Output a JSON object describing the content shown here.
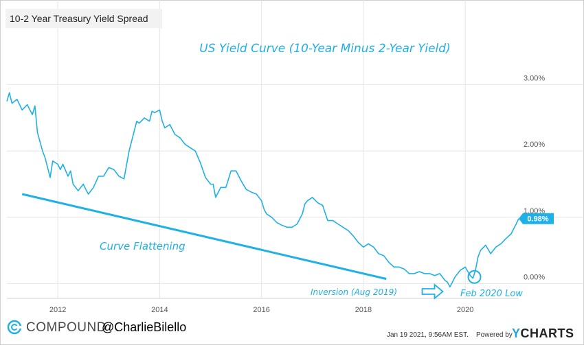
{
  "chart_data": {
    "type": "line",
    "legend_label": "10-2 Year Treasury Yield Spread",
    "title": "US Yield Curve (10-Year Minus 2-Year Yield)",
    "x_ticks": [
      "2012",
      "2014",
      "2016",
      "2018",
      "2020"
    ],
    "y_ticks": [
      "3.00%",
      "2.00%",
      "1.00%",
      "0.00%"
    ],
    "y_tick_values": [
      3.0,
      2.0,
      1.0,
      0.0
    ],
    "ylim": [
      -0.12,
      3.12
    ],
    "xlim": [
      2011.0,
      2021.05
    ],
    "grid": true,
    "series": [
      {
        "color": "#1fb0e6",
        "x": [
          2011.0,
          2011.05,
          2011.1,
          2011.2,
          2011.3,
          2011.4,
          2011.5,
          2011.55,
          2011.6,
          2011.7,
          2011.75,
          2011.8,
          2011.85,
          2011.9,
          2012.0,
          2012.05,
          2012.1,
          2012.2,
          2012.25,
          2012.3,
          2012.4,
          2012.5,
          2012.55,
          2012.6,
          2012.7,
          2012.8,
          2012.9,
          2013.0,
          2013.1,
          2013.2,
          2013.3,
          2013.4,
          2013.5,
          2013.55,
          2013.6,
          2013.7,
          2013.8,
          2013.85,
          2013.9,
          2014.0,
          2014.05,
          2014.1,
          2014.2,
          2014.3,
          2014.4,
          2014.5,
          2014.6,
          2014.7,
          2014.8,
          2014.9,
          2015.0,
          2015.05,
          2015.1,
          2015.2,
          2015.3,
          2015.4,
          2015.5,
          2015.6,
          2015.7,
          2015.8,
          2015.9,
          2016.0,
          2016.05,
          2016.1,
          2016.2,
          2016.3,
          2016.4,
          2016.5,
          2016.6,
          2016.7,
          2016.8,
          2016.85,
          2016.9,
          2017.0,
          2017.1,
          2017.2,
          2017.3,
          2017.4,
          2017.5,
          2017.6,
          2017.7,
          2017.8,
          2017.9,
          2018.0,
          2018.1,
          2018.2,
          2018.3,
          2018.4,
          2018.5,
          2018.6,
          2018.7,
          2018.8,
          2018.9,
          2019.0,
          2019.1,
          2019.2,
          2019.3,
          2019.4,
          2019.5,
          2019.55,
          2019.6,
          2019.65,
          2019.7,
          2019.8,
          2019.9,
          2020.0,
          2020.05,
          2020.1,
          2020.15,
          2020.2,
          2020.25,
          2020.3,
          2020.4,
          2020.5,
          2020.6,
          2020.7,
          2020.8,
          2020.9,
          2021.0,
          2021.05
        ],
        "values": [
          2.75,
          2.88,
          2.72,
          2.78,
          2.62,
          2.7,
          2.55,
          2.68,
          2.28,
          2.0,
          1.9,
          1.75,
          1.6,
          1.85,
          1.8,
          1.72,
          1.8,
          1.62,
          1.7,
          1.5,
          1.4,
          1.5,
          1.42,
          1.35,
          1.45,
          1.62,
          1.62,
          1.75,
          1.72,
          1.62,
          1.58,
          2.0,
          2.3,
          2.45,
          2.42,
          2.5,
          2.45,
          2.6,
          2.58,
          2.62,
          2.45,
          2.35,
          2.4,
          2.25,
          2.2,
          2.1,
          2.05,
          2.0,
          1.82,
          1.6,
          1.5,
          1.5,
          1.3,
          1.45,
          1.45,
          1.7,
          1.7,
          1.55,
          1.42,
          1.38,
          1.35,
          1.25,
          1.12,
          1.05,
          1.0,
          0.92,
          0.88,
          0.85,
          0.85,
          0.9,
          1.05,
          1.2,
          1.25,
          1.3,
          1.22,
          1.18,
          0.95,
          0.95,
          0.9,
          0.85,
          0.8,
          0.72,
          0.62,
          0.55,
          0.6,
          0.55,
          0.45,
          0.42,
          0.32,
          0.25,
          0.25,
          0.22,
          0.15,
          0.15,
          0.18,
          0.15,
          0.15,
          0.12,
          0.15,
          0.1,
          0.05,
          0.02,
          -0.05,
          0.1,
          0.2,
          0.25,
          0.18,
          0.12,
          0.08,
          0.2,
          0.4,
          0.5,
          0.58,
          0.45,
          0.55,
          0.6,
          0.68,
          0.75,
          0.9,
          0.98
        ]
      }
    ],
    "last_value_label": "0.98%",
    "last_value": 0.98,
    "annotations": {
      "flattening_label": "Curve Flattening",
      "flattening_line": {
        "x": [
          2011.3,
          2018.45
        ],
        "y": [
          1.35,
          0.07
        ]
      },
      "inversion_label": "Inversion (Aug 2019)",
      "inversion_arrow_at": {
        "x": 2019.6,
        "y": 0.0
      },
      "low_label": "Feb 2020 Low",
      "low_circle_at": {
        "x": 2020.18,
        "y": 0.1
      }
    }
  },
  "footer": {
    "brand": "COMPOUND",
    "handle": "@CharlieBilello",
    "timestamp": "Jan 19 2021, 9:56AM EST.",
    "powered_by": "Powered by",
    "ycharts_y": "Y",
    "ycharts_rest": "CHARTS"
  }
}
